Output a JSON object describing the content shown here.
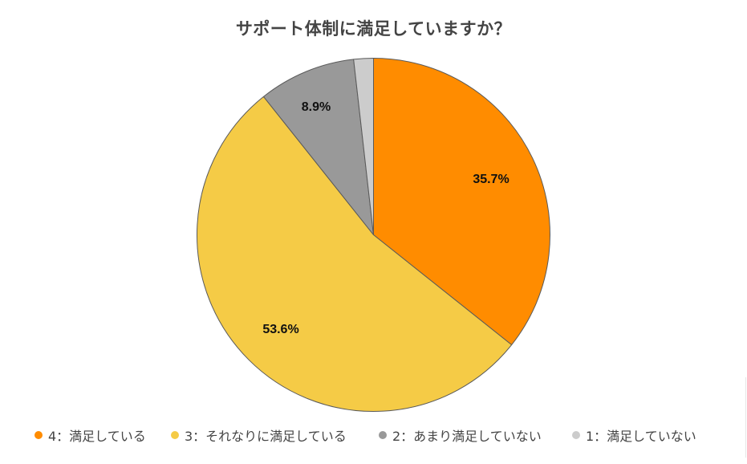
{
  "chart_data": {
    "type": "pie",
    "title": "サポート体制に満足していますか？",
    "categories": [
      "4：満足している",
      "3：それなりに満足している",
      "2：あまり満足していない",
      "1：満足していない"
    ],
    "values": [
      35.7,
      53.6,
      8.9,
      1.8
    ],
    "labels_shown": [
      "35.7%",
      "53.6%",
      "8.9%",
      ""
    ],
    "colors": [
      "#FF8C00",
      "#F5CB46",
      "#999999",
      "#CCCCCC"
    ],
    "start_angle_deg": 0,
    "direction": "clockwise",
    "legend_position": "bottom",
    "xlabel": "",
    "ylabel": ""
  },
  "title": "サポート体制に満足していますか？",
  "labels": {
    "s0": "35.7%",
    "s1": "53.6%",
    "s2": "8.9%"
  },
  "legend": {
    "items": [
      {
        "label": "4：満足している",
        "color": "#FF8C00"
      },
      {
        "label": "3：それなりに満足している",
        "color": "#F5CB46"
      },
      {
        "label": "2：あまり満足していない",
        "color": "#999999"
      },
      {
        "label": "1：満足していない",
        "color": "#CCCCCC"
      }
    ]
  }
}
